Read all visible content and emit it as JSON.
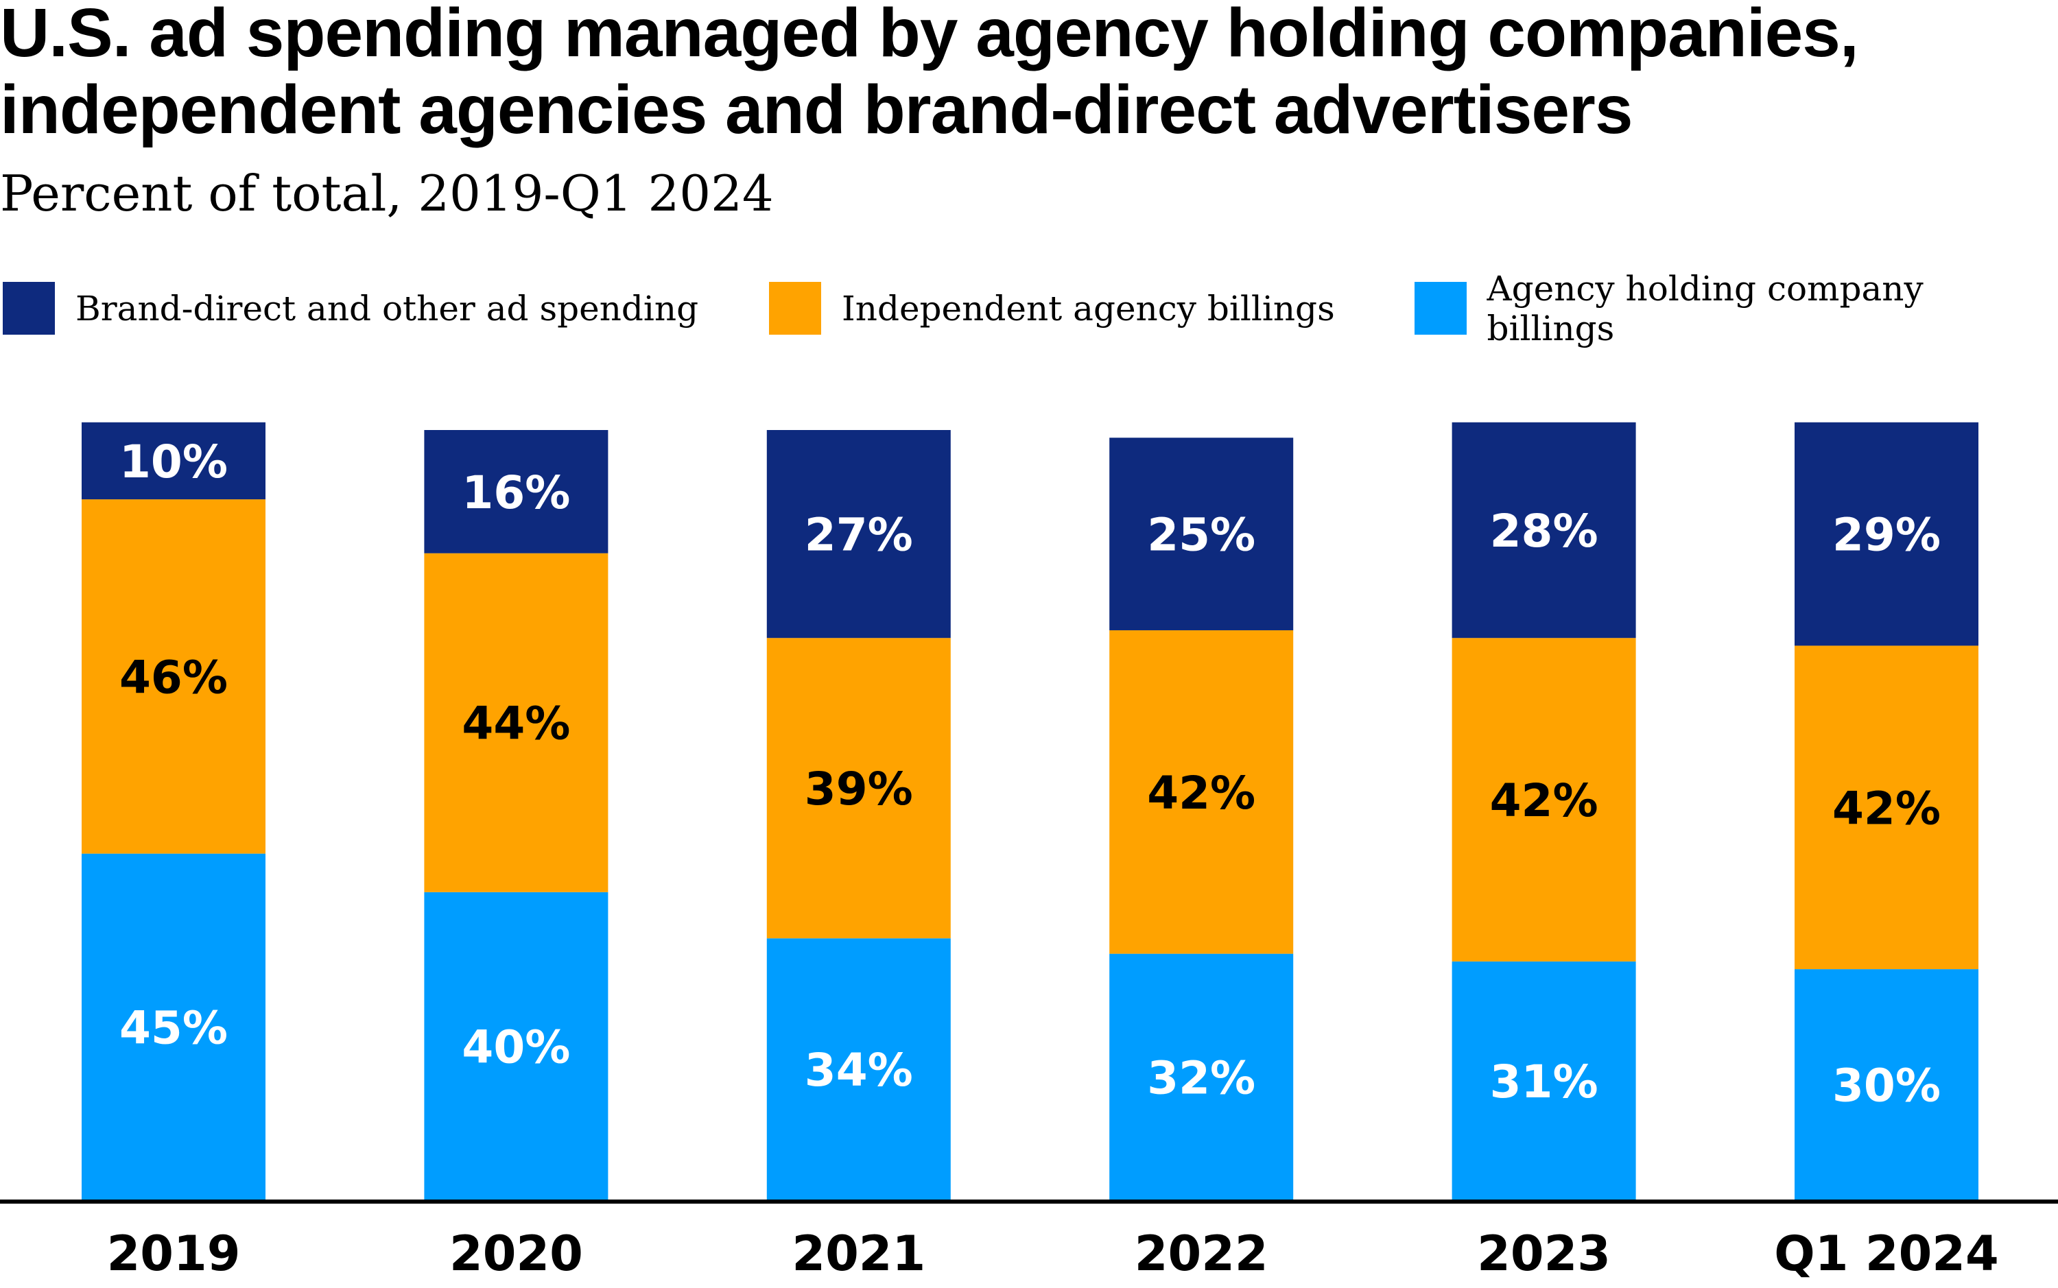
{
  "chart_data": {
    "type": "bar",
    "stacked": true,
    "title": "U.S. ad spending managed by agency holding companies, independent agencies and brand-direct advertisers",
    "subtitle": "Percent of total, 2019-Q1 2024",
    "categories": [
      "2019",
      "2020",
      "2021",
      "2022",
      "2023",
      "Q1 2024"
    ],
    "series": [
      {
        "name": "Agency holding company billings",
        "color": "#009DFF",
        "label_color": "#FFFFFF",
        "values": [
          45,
          40,
          34,
          32,
          31,
          30
        ]
      },
      {
        "name": "Independent agency billings",
        "color": "#FFA300",
        "label_color": "#000000",
        "values": [
          46,
          44,
          39,
          42,
          42,
          42
        ]
      },
      {
        "name": "Brand-direct and other ad spending",
        "color": "#0E2A7E",
        "label_color": "#FFFFFF",
        "values": [
          10,
          16,
          27,
          25,
          28,
          29
        ]
      }
    ],
    "legend_order": [
      "Brand-direct and other ad spending",
      "Independent agency billings",
      "Agency holding company billings"
    ],
    "legend_placement": "top",
    "value_suffix": "%",
    "grid": false,
    "ylim": [
      0,
      101
    ]
  }
}
